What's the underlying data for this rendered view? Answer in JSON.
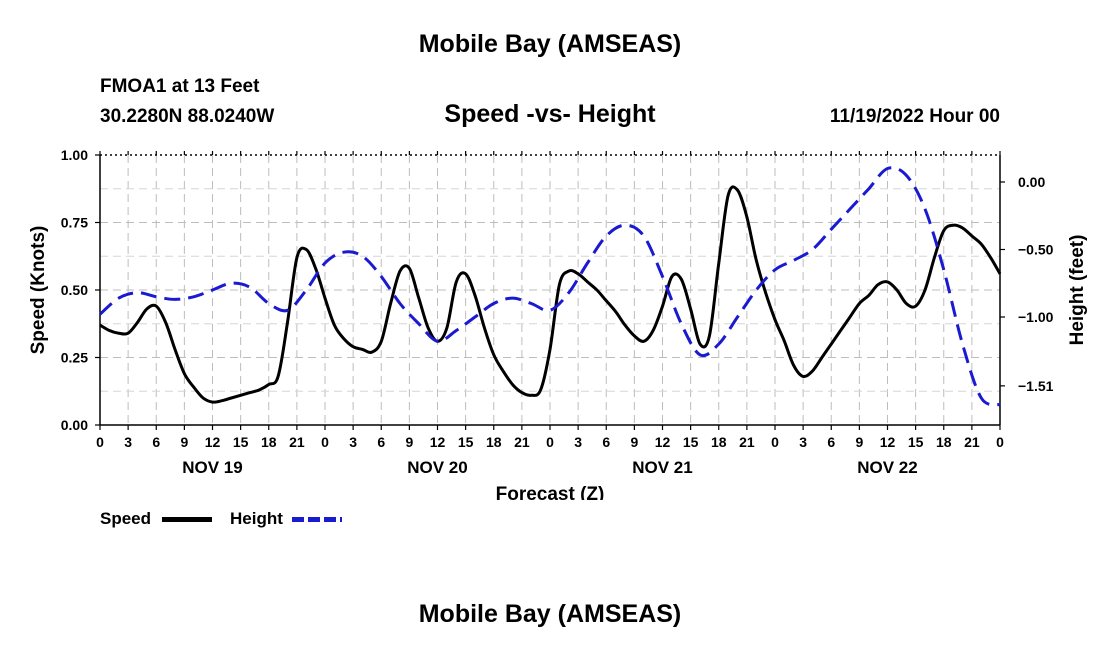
{
  "header": {
    "title": "Mobile Bay (AMSEAS)",
    "station": "FMOA1 at 13 Feet",
    "coords": "30.2280N  88.0240W",
    "chart_title": "Speed -vs- Height",
    "timestamp": "11/19/2022 Hour 00"
  },
  "footer": {
    "title": "Mobile Bay (AMSEAS)"
  },
  "legend": {
    "speed_label": "Speed",
    "height_label": "Height",
    "speed_color": "#000000",
    "height_color": "#1a1ad0"
  },
  "chart_data": {
    "type": "line",
    "title": "Speed -vs- Height",
    "xlabel": "Forecast (Z)",
    "ylabel": "Speed (Knots)",
    "y2label": "Height (feet)",
    "xlim": [
      0,
      96
    ],
    "ylim": [
      0,
      1.0
    ],
    "y2lim": [
      -1.8,
      0.2
    ],
    "x_ticks": [
      0,
      3,
      6,
      9,
      12,
      15,
      18,
      21,
      24,
      27,
      30,
      33,
      36,
      39,
      42,
      45,
      48,
      51,
      54,
      57,
      60,
      63,
      66,
      69,
      72,
      75,
      78,
      81,
      84,
      87,
      90,
      93,
      96
    ],
    "x_tick_labels": [
      "0",
      "3",
      "6",
      "9",
      "12",
      "15",
      "18",
      "21",
      "0",
      "3",
      "6",
      "9",
      "12",
      "15",
      "18",
      "21",
      "0",
      "3",
      "6",
      "9",
      "12",
      "15",
      "18",
      "21",
      "0",
      "3",
      "6",
      "9",
      "12",
      "15",
      "18",
      "21",
      "0"
    ],
    "day_labels": [
      {
        "x": 12,
        "label": "NOV 19"
      },
      {
        "x": 36,
        "label": "NOV 20"
      },
      {
        "x": 60,
        "label": "NOV 21"
      },
      {
        "x": 84,
        "label": "NOV 22"
      }
    ],
    "y_ticks": [
      0.0,
      0.25,
      0.5,
      0.75,
      1.0
    ],
    "y_tick_labels": [
      "0.00",
      "0.25",
      "0.50",
      "0.75",
      "1.00"
    ],
    "y2_ticks": [
      0.0,
      -0.5,
      -1.0,
      -1.51
    ],
    "y2_tick_labels": [
      "0.00",
      "−0.50",
      "−1.00",
      "−1.51"
    ],
    "grid": true,
    "series": [
      {
        "name": "Speed",
        "axis": "left",
        "style": "solid",
        "x": [
          0,
          1,
          2,
          3,
          4,
          5,
          6,
          7,
          8,
          9,
          10,
          11,
          12,
          13,
          14,
          15,
          16,
          17,
          18,
          19,
          20,
          21,
          22,
          23,
          24,
          25,
          26,
          27,
          28,
          29,
          30,
          31,
          32,
          33,
          34,
          35,
          36,
          37,
          38,
          39,
          40,
          41,
          42,
          43,
          44,
          45,
          46,
          47,
          48,
          49,
          50,
          51,
          52,
          53,
          54,
          55,
          56,
          57,
          58,
          59,
          60,
          61,
          62,
          63,
          64,
          65,
          66,
          67,
          68,
          69,
          70,
          71,
          72,
          73,
          74,
          75,
          76,
          77,
          78,
          79,
          80,
          81,
          82,
          83,
          84,
          85,
          86,
          87,
          88,
          89,
          90,
          91,
          92,
          93,
          94,
          95,
          96
        ],
        "values": [
          0.37,
          0.35,
          0.34,
          0.34,
          0.38,
          0.43,
          0.44,
          0.38,
          0.28,
          0.19,
          0.14,
          0.1,
          0.085,
          0.09,
          0.1,
          0.11,
          0.12,
          0.13,
          0.15,
          0.18,
          0.38,
          0.62,
          0.65,
          0.58,
          0.47,
          0.37,
          0.32,
          0.29,
          0.28,
          0.27,
          0.31,
          0.45,
          0.57,
          0.58,
          0.47,
          0.36,
          0.31,
          0.36,
          0.53,
          0.56,
          0.48,
          0.36,
          0.26,
          0.2,
          0.15,
          0.12,
          0.11,
          0.13,
          0.28,
          0.52,
          0.57,
          0.56,
          0.53,
          0.5,
          0.46,
          0.42,
          0.37,
          0.33,
          0.31,
          0.35,
          0.44,
          0.55,
          0.54,
          0.43,
          0.3,
          0.33,
          0.6,
          0.85,
          0.87,
          0.77,
          0.61,
          0.49,
          0.39,
          0.31,
          0.22,
          0.18,
          0.2,
          0.25,
          0.3,
          0.35,
          0.4,
          0.45,
          0.48,
          0.52,
          0.53,
          0.5,
          0.45,
          0.44,
          0.5,
          0.62,
          0.72,
          0.74,
          0.73,
          0.7,
          0.67,
          0.62,
          0.56
        ]
      },
      {
        "name": "Height",
        "axis": "right",
        "style": "dashed",
        "x": [
          0,
          2,
          4,
          6,
          8,
          10,
          12,
          14,
          16,
          18,
          20,
          22,
          24,
          26,
          28,
          30,
          32,
          34,
          36,
          38,
          40,
          42,
          44,
          46,
          48,
          50,
          52,
          54,
          56,
          58,
          60,
          62,
          64,
          66,
          68,
          70,
          72,
          74,
          76,
          78,
          80,
          82,
          84,
          86,
          88,
          90,
          92,
          94,
          96
        ],
        "values": [
          -0.98,
          -0.86,
          -0.82,
          -0.85,
          -0.87,
          -0.85,
          -0.8,
          -0.75,
          -0.78,
          -0.9,
          -0.95,
          -0.8,
          -0.6,
          -0.52,
          -0.55,
          -0.7,
          -0.9,
          -1.05,
          -1.18,
          -1.1,
          -1.0,
          -0.9,
          -0.86,
          -0.9,
          -0.95,
          -0.82,
          -0.6,
          -0.4,
          -0.32,
          -0.4,
          -0.7,
          -1.05,
          -1.28,
          -1.2,
          -1.0,
          -0.8,
          -0.65,
          -0.58,
          -0.5,
          -0.35,
          -0.2,
          -0.05,
          0.1,
          0.05,
          -0.2,
          -0.65,
          -1.2,
          -1.6,
          -1.65
        ]
      }
    ]
  }
}
